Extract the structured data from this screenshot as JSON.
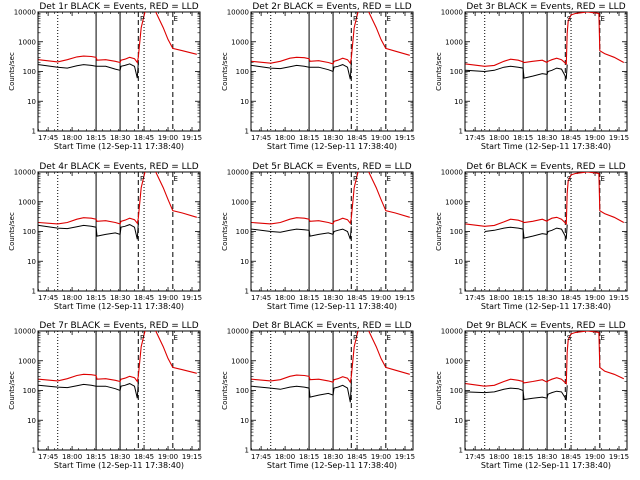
{
  "chart_data": {
    "type": "line",
    "layout": "3x3 grid",
    "xlabel": "Start Time (12-Sep-11 17:38:40)",
    "ylabel": "Counts/sec",
    "yscale": "log",
    "ylim": [
      1,
      10000
    ],
    "ytick_labels": [
      "1",
      "10",
      "100",
      "1000",
      "10000"
    ],
    "xlim": [
      17.6444,
      19.3333
    ],
    "xticks": [
      17.75,
      18.0,
      18.25,
      18.5,
      18.75,
      19.0,
      19.25
    ],
    "xtick_labels": [
      "17:45",
      "18:00",
      "18:15",
      "18:30",
      "18:45",
      "19:00",
      "19:15"
    ],
    "colors": {
      "events": "#000000",
      "lld": "#dd0000"
    },
    "markers": {
      "dotted_x": [
        17.85,
        18.75
      ],
      "solid_x": [
        18.25,
        18.5
      ],
      "dashed_x": [
        18.69,
        19.05
      ],
      "letters": [
        {
          "text": "P",
          "x": 18.73
        },
        {
          "text": "S",
          "x": 18.73
        },
        {
          "text": "E",
          "x": 19.08
        }
      ]
    },
    "panels": [
      {
        "title": "Det 1r BLACK = Events, RED = LLD",
        "variant": "rear",
        "marker_letters": [
          0,
          2
        ],
        "events": {
          "x": [
            17.65,
            17.85,
            17.95,
            18.05,
            18.12,
            18.2,
            18.25,
            18.26,
            18.35,
            18.45,
            18.5,
            18.51,
            18.55,
            18.6,
            18.65,
            18.68,
            18.69
          ],
          "y": [
            170,
            140,
            130,
            155,
            170,
            160,
            150,
            150,
            150,
            120,
            110,
            150,
            160,
            180,
            150,
            60,
            200
          ]
        },
        "lld": {
          "x": [
            17.65,
            17.85,
            17.95,
            18.05,
            18.12,
            18.2,
            18.25,
            18.26,
            18.35,
            18.45,
            18.5,
            18.51,
            18.55,
            18.6,
            18.65,
            18.68,
            18.69,
            18.72,
            18.76,
            18.8,
            18.86,
            18.95,
            19.0,
            19.05,
            19.15,
            19.3
          ],
          "y": [
            250,
            210,
            250,
            310,
            330,
            320,
            300,
            240,
            250,
            220,
            200,
            240,
            260,
            300,
            270,
            200,
            300,
            3000,
            10000,
            12000,
            12000,
            3000,
            1200,
            600,
            500,
            380
          ]
        }
      },
      {
        "title": "Det 2r BLACK = Events, RED = LLD",
        "variant": "rear",
        "marker_letters": [
          0,
          2
        ],
        "events": {
          "x": [
            17.65,
            17.85,
            17.95,
            18.05,
            18.12,
            18.2,
            18.25,
            18.26,
            18.35,
            18.45,
            18.5,
            18.51,
            18.55,
            18.6,
            18.65,
            18.68,
            18.69
          ],
          "y": [
            160,
            130,
            125,
            145,
            160,
            150,
            140,
            140,
            140,
            115,
            100,
            140,
            150,
            170,
            140,
            55,
            190
          ]
        },
        "lld": {
          "x": [
            17.65,
            17.85,
            17.95,
            18.05,
            18.12,
            18.2,
            18.25,
            18.26,
            18.35,
            18.45,
            18.5,
            18.51,
            18.55,
            18.6,
            18.65,
            18.68,
            18.69,
            18.72,
            18.76,
            18.8,
            18.86,
            18.95,
            19.0,
            19.05,
            19.15,
            19.3
          ],
          "y": [
            220,
            190,
            220,
            280,
            300,
            290,
            270,
            220,
            230,
            200,
            180,
            220,
            240,
            280,
            250,
            190,
            280,
            3000,
            10000,
            12000,
            12000,
            3000,
            1200,
            600,
            480,
            350
          ]
        }
      },
      {
        "title": "Det 3r BLACK = Events, RED = LLD",
        "variant": "front",
        "marker_letters": [
          1,
          2
        ],
        "events": {
          "x": [
            17.65,
            17.85,
            17.95,
            18.05,
            18.12,
            18.2,
            18.25,
            18.26,
            18.35,
            18.45,
            18.5,
            18.51,
            18.55,
            18.6,
            18.65,
            18.7,
            18.71
          ],
          "y": [
            110,
            100,
            110,
            140,
            150,
            140,
            130,
            60,
            70,
            85,
            80,
            100,
            110,
            130,
            120,
            60,
            170
          ]
        },
        "lld": {
          "x": [
            17.65,
            17.85,
            17.95,
            18.05,
            18.12,
            18.2,
            18.25,
            18.26,
            18.35,
            18.45,
            18.5,
            18.51,
            18.55,
            18.6,
            18.65,
            18.7,
            18.71,
            18.72,
            18.75,
            18.8,
            18.86,
            18.92,
            18.98,
            19.04,
            19.05,
            19.1,
            19.2,
            19.3
          ],
          "y": [
            180,
            150,
            160,
            220,
            260,
            240,
            210,
            200,
            220,
            240,
            200,
            220,
            250,
            280,
            250,
            180,
            2000,
            5000,
            8000,
            9000,
            9500,
            10000,
            9500,
            9000,
            500,
            400,
            300,
            200
          ]
        }
      },
      {
        "title": "Det 4r BLACK = Events, RED = LLD",
        "variant": "rear",
        "marker_letters": [
          0,
          2
        ],
        "events": {
          "x": [
            17.65,
            17.85,
            17.95,
            18.05,
            18.12,
            18.2,
            18.25,
            18.26,
            18.35,
            18.45,
            18.5,
            18.51,
            18.55,
            18.6,
            18.65,
            18.68,
            18.69
          ],
          "y": [
            160,
            130,
            125,
            145,
            160,
            150,
            140,
            70,
            80,
            90,
            80,
            140,
            150,
            170,
            140,
            55,
            190
          ]
        },
        "lld": {
          "x": [
            17.65,
            17.85,
            17.95,
            18.05,
            18.12,
            18.2,
            18.25,
            18.26,
            18.35,
            18.45,
            18.5,
            18.51,
            18.55,
            18.6,
            18.65,
            18.68,
            18.69,
            18.72,
            18.76,
            18.8,
            18.86,
            18.95,
            19.0,
            19.05,
            19.15,
            19.3
          ],
          "y": [
            200,
            180,
            200,
            260,
            290,
            280,
            260,
            220,
            230,
            200,
            180,
            220,
            240,
            280,
            250,
            190,
            280,
            3000,
            10000,
            12000,
            12000,
            3000,
            1200,
            500,
            420,
            300
          ]
        }
      },
      {
        "title": "Det 5r BLACK = Events, RED = LLD",
        "variant": "rear",
        "marker_letters": [
          0,
          2
        ],
        "events": {
          "x": [
            17.65,
            17.85,
            17.95,
            18.05,
            18.12,
            18.2,
            18.25,
            18.26,
            18.35,
            18.45,
            18.5,
            18.51,
            18.55,
            18.6,
            18.65,
            18.68,
            18.69
          ],
          "y": [
            120,
            100,
            95,
            110,
            120,
            115,
            110,
            70,
            80,
            90,
            80,
            100,
            110,
            120,
            100,
            55,
            150
          ]
        },
        "lld": {
          "x": [
            17.65,
            17.85,
            17.95,
            18.05,
            18.12,
            18.2,
            18.25,
            18.26,
            18.35,
            18.45,
            18.5,
            18.51,
            18.55,
            18.6,
            18.65,
            18.68,
            18.69,
            18.72,
            18.76,
            18.8,
            18.86,
            18.95,
            19.0,
            19.05,
            19.15,
            19.3
          ],
          "y": [
            200,
            180,
            200,
            260,
            290,
            280,
            260,
            220,
            230,
            200,
            180,
            220,
            240,
            280,
            250,
            190,
            280,
            3000,
            10000,
            12000,
            12000,
            3000,
            1200,
            500,
            420,
            300
          ]
        }
      },
      {
        "title": "Det 6r BLACK = Events, RED = LLD",
        "variant": "front",
        "marker_letters": [
          1,
          2
        ],
        "events": {
          "x": [
            17.85,
            17.95,
            18.05,
            18.12,
            18.2,
            18.25,
            18.26,
            18.35,
            18.45,
            18.5,
            18.51,
            18.55,
            18.6,
            18.65,
            18.7,
            18.71
          ],
          "y": [
            100,
            110,
            130,
            140,
            130,
            120,
            60,
            70,
            85,
            80,
            100,
            110,
            130,
            120,
            60,
            170
          ]
        },
        "lld": {
          "x": [
            17.65,
            17.85,
            17.95,
            18.05,
            18.12,
            18.2,
            18.25,
            18.26,
            18.35,
            18.45,
            18.5,
            18.51,
            18.55,
            18.6,
            18.65,
            18.7,
            18.71,
            18.72,
            18.75,
            18.8,
            18.86,
            18.92,
            18.98,
            19.04,
            19.05,
            19.1,
            19.2,
            19.3
          ],
          "y": [
            180,
            150,
            160,
            210,
            260,
            240,
            210,
            200,
            220,
            260,
            220,
            240,
            280,
            300,
            260,
            180,
            2000,
            5000,
            8000,
            9000,
            9500,
            10000,
            9500,
            9000,
            500,
            400,
            300,
            200
          ]
        }
      },
      {
        "title": "Det 7r BLACK = Events, RED = LLD",
        "variant": "rear",
        "marker_letters": [
          0,
          2
        ],
        "events": {
          "x": [
            17.65,
            17.85,
            17.95,
            18.05,
            18.12,
            18.2,
            18.25,
            18.26,
            18.35,
            18.45,
            18.5,
            18.51,
            18.55,
            18.6,
            18.65,
            18.68,
            18.69
          ],
          "y": [
            150,
            130,
            125,
            145,
            160,
            150,
            140,
            140,
            140,
            115,
            100,
            140,
            150,
            170,
            140,
            55,
            190
          ]
        },
        "lld": {
          "x": [
            17.65,
            17.85,
            17.95,
            18.05,
            18.12,
            18.2,
            18.25,
            18.26,
            18.35,
            18.45,
            18.5,
            18.51,
            18.55,
            18.6,
            18.65,
            18.68,
            18.69,
            18.72,
            18.76,
            18.8,
            18.86,
            18.95,
            19.0,
            19.05,
            19.15,
            19.3
          ],
          "y": [
            240,
            210,
            250,
            320,
            350,
            340,
            320,
            240,
            250,
            220,
            200,
            240,
            260,
            300,
            270,
            200,
            300,
            3000,
            10000,
            12000,
            12000,
            3000,
            1200,
            600,
            500,
            380
          ]
        }
      },
      {
        "title": "Det 8r BLACK = Events, RED = LLD",
        "variant": "rear",
        "marker_letters": [
          0,
          2
        ],
        "events": {
          "x": [
            17.65,
            17.85,
            17.95,
            18.05,
            18.12,
            18.2,
            18.25,
            18.26,
            18.35,
            18.45,
            18.5,
            18.51,
            18.55,
            18.6,
            18.65,
            18.68,
            18.69
          ],
          "y": [
            140,
            120,
            110,
            130,
            140,
            130,
            120,
            60,
            70,
            80,
            70,
            120,
            130,
            150,
            120,
            40,
            170
          ]
        },
        "lld": {
          "x": [
            17.65,
            17.85,
            17.95,
            18.05,
            18.12,
            18.2,
            18.25,
            18.26,
            18.35,
            18.45,
            18.5,
            18.51,
            18.55,
            18.6,
            18.65,
            18.68,
            18.69,
            18.72,
            18.76,
            18.8,
            18.86,
            18.95,
            19.0,
            19.05,
            19.15,
            19.3
          ],
          "y": [
            240,
            210,
            230,
            300,
            330,
            320,
            300,
            230,
            240,
            210,
            190,
            230,
            250,
            290,
            260,
            190,
            290,
            3000,
            10000,
            12000,
            12000,
            3000,
            1200,
            600,
            480,
            350
          ]
        }
      },
      {
        "title": "Det 9r BLACK = Events, RED = LLD",
        "variant": "front",
        "marker_letters": [
          1,
          2
        ],
        "events": {
          "x": [
            17.65,
            17.85,
            17.95,
            18.05,
            18.12,
            18.2,
            18.25,
            18.26,
            18.35,
            18.45,
            18.5,
            18.51,
            18.55,
            18.6,
            18.65,
            18.7,
            18.71
          ],
          "y": [
            90,
            85,
            90,
            110,
            120,
            115,
            100,
            50,
            55,
            60,
            55,
            75,
            85,
            95,
            90,
            50,
            150
          ]
        },
        "lld": {
          "x": [
            17.65,
            17.85,
            17.95,
            18.05,
            18.12,
            18.2,
            18.25,
            18.26,
            18.35,
            18.45,
            18.5,
            18.51,
            18.55,
            18.6,
            18.65,
            18.7,
            18.71,
            18.72,
            18.75,
            18.8,
            18.86,
            18.92,
            18.98,
            19.04,
            19.05,
            19.1,
            19.2,
            19.3
          ],
          "y": [
            170,
            140,
            150,
            200,
            240,
            220,
            200,
            180,
            200,
            230,
            190,
            210,
            240,
            270,
            240,
            170,
            2000,
            5000,
            8000,
            9000,
            9500,
            10000,
            9500,
            9000,
            600,
            450,
            350,
            250
          ]
        }
      }
    ]
  }
}
